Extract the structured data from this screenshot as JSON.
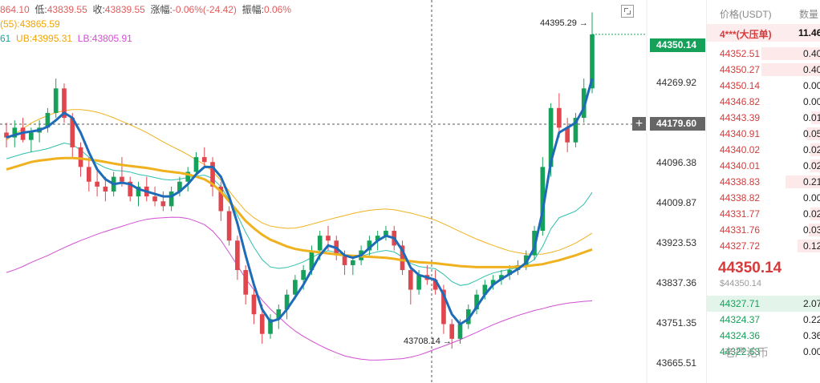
{
  "header": {
    "line1_prefix": "864.10",
    "low_label": "低:",
    "low_value": "43839.55",
    "close_label": "收:",
    "close_value": "43839.55",
    "change_label": "涨幅:",
    "change_value": "-0.06%(-24.42)",
    "amp_label": "振幅:",
    "amp_value": "0.06%",
    "ma_line": "(55):43865.59",
    "mid_value": "61",
    "ub_text": "UB:43995.31",
    "lb_text": "LB:43805.91"
  },
  "chart_data": {
    "type": "candlestick",
    "y_ticks": [
      "44269.92",
      "44096.38",
      "44009.87",
      "43923.53",
      "43837.36",
      "43751.35",
      "43665.51"
    ],
    "ylim": [
      43640,
      44420
    ],
    "last_price_tag": "44350.14",
    "crosshair_price_tag": "44179.60",
    "high_annotation": "44395.29 →",
    "low_annotation": "43708.14 →",
    "colors": {
      "up": "#16a15a",
      "down": "#e0464e",
      "ma_fast": "#1e6bb8",
      "ma_slow": "#f0b11e",
      "boll_upper": "#f0b11e",
      "boll_mid": "#2fbfae",
      "boll_lower": "#d14fd1"
    },
    "candles": [
      [
        44150,
        44170,
        44120,
        44140
      ],
      [
        44140,
        44175,
        44120,
        44160
      ],
      [
        44160,
        44180,
        44130,
        44135
      ],
      [
        44135,
        44160,
        44110,
        44150
      ],
      [
        44150,
        44175,
        44130,
        44160
      ],
      [
        44160,
        44200,
        44150,
        44190
      ],
      [
        44190,
        44260,
        44180,
        44240
      ],
      [
        44240,
        44250,
        44170,
        44180
      ],
      [
        44180,
        44190,
        44100,
        44120
      ],
      [
        44120,
        44130,
        44060,
        44080
      ],
      [
        44080,
        44100,
        44030,
        44050
      ],
      [
        44050,
        44080,
        44020,
        44040
      ],
      [
        44040,
        44060,
        44010,
        44030
      ],
      [
        44030,
        44070,
        44020,
        44060
      ],
      [
        44060,
        44100,
        44040,
        44050
      ],
      [
        44050,
        44060,
        44010,
        44020
      ],
      [
        44020,
        44050,
        44000,
        44040
      ],
      [
        44040,
        44060,
        44010,
        44020
      ],
      [
        44020,
        44040,
        44000,
        44010
      ],
      [
        44010,
        44030,
        43990,
        44000
      ],
      [
        44000,
        44040,
        43990,
        44030
      ],
      [
        44030,
        44060,
        44020,
        44050
      ],
      [
        44050,
        44080,
        44030,
        44070
      ],
      [
        44070,
        44110,
        44060,
        44100
      ],
      [
        44100,
        44120,
        44080,
        44090
      ],
      [
        44090,
        44100,
        44020,
        44040
      ],
      [
        44040,
        44050,
        43970,
        43990
      ],
      [
        43990,
        44000,
        43920,
        43930
      ],
      [
        43930,
        43940,
        43850,
        43870
      ],
      [
        43870,
        43880,
        43800,
        43820
      ],
      [
        43820,
        43830,
        43760,
        43780
      ],
      [
        43780,
        43800,
        43720,
        43740
      ],
      [
        43740,
        43780,
        43730,
        43770
      ],
      [
        43770,
        43800,
        43750,
        43790
      ],
      [
        43790,
        43830,
        43770,
        43820
      ],
      [
        43820,
        43860,
        43810,
        43850
      ],
      [
        43850,
        43880,
        43830,
        43870
      ],
      [
        43870,
        43920,
        43860,
        43910
      ],
      [
        43910,
        43950,
        43890,
        43940
      ],
      [
        43940,
        43960,
        43910,
        43930
      ],
      [
        43930,
        43940,
        43890,
        43900
      ],
      [
        43900,
        43910,
        43860,
        43880
      ],
      [
        43880,
        43900,
        43860,
        43890
      ],
      [
        43890,
        43920,
        43880,
        43910
      ],
      [
        43910,
        43940,
        43900,
        43930
      ],
      [
        43930,
        43950,
        43910,
        43940
      ],
      [
        43940,
        43960,
        43930,
        43950
      ],
      [
        43950,
        43960,
        43910,
        43920
      ],
      [
        43920,
        43930,
        43860,
        43870
      ],
      [
        43870,
        43880,
        43800,
        43830
      ],
      [
        43830,
        43870,
        43820,
        43860
      ],
      [
        43860,
        43880,
        43840,
        43850
      ],
      [
        43850,
        43870,
        43820,
        43830
      ],
      [
        43830,
        43840,
        43740,
        43760
      ],
      [
        43760,
        43770,
        43710,
        43730
      ],
      [
        43730,
        43770,
        43720,
        43760
      ],
      [
        43760,
        43800,
        43750,
        43790
      ],
      [
        43790,
        43830,
        43780,
        43820
      ],
      [
        43820,
        43850,
        43810,
        43840
      ],
      [
        43840,
        43860,
        43830,
        43850
      ],
      [
        43850,
        43870,
        43840,
        43860
      ],
      [
        43860,
        43880,
        43850,
        43870
      ],
      [
        43870,
        43890,
        43860,
        43880
      ],
      [
        43880,
        43910,
        43870,
        43900
      ],
      [
        43900,
        43960,
        43890,
        43950
      ],
      [
        43950,
        44100,
        43940,
        44080
      ],
      [
        44080,
        44210,
        44060,
        44200
      ],
      [
        44200,
        44230,
        44140,
        44160
      ],
      [
        44160,
        44180,
        44110,
        44130
      ],
      [
        44130,
        44190,
        44120,
        44180
      ],
      [
        44180,
        44260,
        44170,
        44240
      ],
      [
        44240,
        44395,
        44230,
        44350
      ]
    ],
    "ma_fast": [
      44140,
      44145,
      44150,
      44152,
      44155,
      44162,
      44175,
      44190,
      44180,
      44150,
      44110,
      44075,
      44055,
      44045,
      44048,
      44045,
      44035,
      44030,
      44025,
      44020,
      44020,
      44030,
      44045,
      44065,
      44080,
      44080,
      44060,
      44020,
      43965,
      43900,
      43840,
      43790,
      43765,
      43770,
      43790,
      43815,
      43840,
      43870,
      43900,
      43920,
      43915,
      43900,
      43895,
      43900,
      43915,
      43930,
      43940,
      43935,
      43910,
      43875,
      43860,
      43855,
      43850,
      43820,
      43780,
      43760,
      43770,
      43795,
      43820,
      43840,
      43852,
      43862,
      43872,
      43885,
      43915,
      43990,
      44090,
      44150,
      44160,
      44170,
      44200,
      44260
    ],
    "ma_slow": [
      44075,
      44080,
      44085,
      44090,
      44093,
      44095,
      44097,
      44098,
      44098,
      44097,
      44095,
      44093,
      44090,
      44087,
      44084,
      44082,
      44080,
      44078,
      44075,
      44072,
      44070,
      44068,
      44065,
      44060,
      44055,
      44045,
      44030,
      44010,
      43990,
      43970,
      43955,
      43942,
      43932,
      43925,
      43918,
      43913,
      43910,
      43908,
      43906,
      43904,
      43902,
      43900,
      43899,
      43898,
      43897,
      43896,
      43895,
      43893,
      43890,
      43888,
      43886,
      43885,
      43884,
      43882,
      43880,
      43878,
      43877,
      43876,
      43876,
      43876,
      43876,
      43876,
      43877,
      43878,
      43880,
      43882,
      43886,
      43890,
      43895,
      43900,
      43906,
      43912
    ]
  },
  "orderbook": {
    "head_price": "价格(USDT)",
    "head_qty": "数量",
    "highlight_price": "4***(大压单)",
    "highlight_qty": "11.46",
    "asks": [
      {
        "p": "44352.51",
        "q": "0.40"
      },
      {
        "p": "44350.27",
        "q": "0.40"
      },
      {
        "p": "44350.14",
        "q": "0.00"
      },
      {
        "p": "44346.82",
        "q": "0.00"
      },
      {
        "p": "44343.39",
        "q": "0.01"
      },
      {
        "p": "44340.91",
        "q": "0.05"
      },
      {
        "p": "44340.02",
        "q": "0.02"
      },
      {
        "p": "44340.01",
        "q": "0.02"
      },
      {
        "p": "44338.83",
        "q": "0.21"
      },
      {
        "p": "44338.82",
        "q": "0.00"
      },
      {
        "p": "44331.77",
        "q": "0.02"
      },
      {
        "p": "44331.76",
        "q": "0.03"
      },
      {
        "p": "44327.72",
        "q": "0.12"
      }
    ],
    "mid_price": "44350.14",
    "mid_sub": "$44350.14",
    "bids": [
      {
        "p": "44327.71",
        "q": "2.07"
      },
      {
        "p": "44324.37",
        "q": "0.22"
      },
      {
        "p": "44324.36",
        "q": "0.36"
      },
      {
        "p": "44322.63",
        "q": "0.00"
      }
    ]
  },
  "watermark": "老严论币"
}
